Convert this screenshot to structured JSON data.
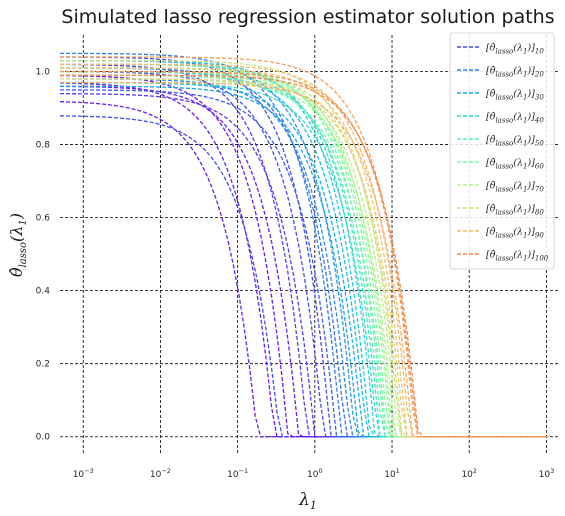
{
  "chart_data": {
    "type": "line",
    "title": "Simulated lasso regression estimator solution paths",
    "xlabel": "λ₁",
    "ylabel": "θ̂_lasso(λ₁)",
    "x_scale": "log",
    "xlim": [
      0.0005,
      1500
    ],
    "ylim": [
      -0.05,
      1.1
    ],
    "grid": true,
    "legend_position": "top-right",
    "x_ticks": [
      {
        "value": 0.001,
        "base": "10",
        "exp": "−3"
      },
      {
        "value": 0.01,
        "base": "10",
        "exp": "−2"
      },
      {
        "value": 0.1,
        "base": "10",
        "exp": "−1"
      },
      {
        "value": 1,
        "base": "10",
        "exp": "0"
      },
      {
        "value": 10,
        "base": "10",
        "exp": "1"
      },
      {
        "value": 100,
        "base": "10",
        "exp": "2"
      },
      {
        "value": 1000,
        "base": "10",
        "exp": "3"
      }
    ],
    "y_ticks": [
      {
        "value": 0.0,
        "label": "0.0"
      },
      {
        "value": 0.2,
        "label": "0.2"
      },
      {
        "value": 0.4,
        "label": "0.4"
      },
      {
        "value": 0.6,
        "label": "0.6"
      },
      {
        "value": 0.8,
        "label": "0.8"
      },
      {
        "value": 1.0,
        "label": "1.0"
      }
    ],
    "series": [
      {
        "legend_index": "10",
        "color": "#3e4ef2",
        "value_at_zero": 0.88,
        "zero_at": 0.35
      },
      {
        "legend_index": "20",
        "color": "#2f7cf5",
        "value_at_zero": 1.05,
        "zero_at": 2.2
      },
      {
        "legend_index": "30",
        "color": "#1aaee8",
        "value_at_zero": 0.97,
        "zero_at": 4.2
      },
      {
        "legend_index": "40",
        "color": "#2fd7d1",
        "value_at_zero": 1.02,
        "zero_at": 6.0
      },
      {
        "legend_index": "50",
        "color": "#55eeb8",
        "value_at_zero": 0.99,
        "zero_at": 7.5
      },
      {
        "legend_index": "60",
        "color": "#80f9a3",
        "value_at_zero": 1.01,
        "zero_at": 9.0
      },
      {
        "legend_index": "70",
        "color": "#aef58a",
        "value_at_zero": 0.98,
        "zero_at": 11.0
      },
      {
        "legend_index": "80",
        "color": "#d8da7b",
        "value_at_zero": 1.0,
        "zero_at": 13.5
      },
      {
        "legend_index": "90",
        "color": "#f7b86a",
        "value_at_zero": 1.02,
        "zero_at": 17.0
      },
      {
        "legend_index": "100",
        "color": "#f28a50",
        "value_at_zero": 0.99,
        "zero_at": 22.0
      }
    ],
    "unlabeled_paths": [
      {
        "color": "#6a1cf2",
        "value_at_zero": 0.92,
        "zero_at": 0.18
      },
      {
        "color": "#6a1cf2",
        "value_at_zero": 0.97,
        "zero_at": 0.3
      },
      {
        "color": "#6a1cf2",
        "value_at_zero": 0.99,
        "zero_at": 0.45
      },
      {
        "color": "#6a1cf2",
        "value_at_zero": 0.96,
        "zero_at": 0.62
      },
      {
        "color": "#5a3af2",
        "value_at_zero": 1.02,
        "zero_at": 0.8
      },
      {
        "color": "#5a3af2",
        "value_at_zero": 0.94,
        "zero_at": 1.0
      },
      {
        "color": "#4b48f3",
        "value_at_zero": 1.0,
        "zero_at": 1.3
      },
      {
        "color": "#4b48f3",
        "value_at_zero": 1.04,
        "zero_at": 1.6
      },
      {
        "color": "#3e5cf4",
        "value_at_zero": 0.95,
        "zero_at": 1.9
      },
      {
        "color": "#3570f5",
        "value_at_zero": 1.01,
        "zero_at": 2.5
      },
      {
        "color": "#2e88f4",
        "value_at_zero": 0.98,
        "zero_at": 2.9
      },
      {
        "color": "#2696ee",
        "value_at_zero": 1.03,
        "zero_at": 3.3
      },
      {
        "color": "#1da4ea",
        "value_at_zero": 0.96,
        "zero_at": 3.7
      },
      {
        "color": "#18bde3",
        "value_at_zero": 1.0,
        "zero_at": 4.7
      },
      {
        "color": "#1ec9dc",
        "value_at_zero": 1.03,
        "zero_at": 5.2
      },
      {
        "color": "#36dcc9",
        "value_at_zero": 0.97,
        "zero_at": 6.5
      },
      {
        "color": "#45e5c0",
        "value_at_zero": 1.0,
        "zero_at": 7.0
      },
      {
        "color": "#66f3af",
        "value_at_zero": 1.02,
        "zero_at": 8.0
      },
      {
        "color": "#74f6a8",
        "value_at_zero": 0.98,
        "zero_at": 8.5
      },
      {
        "color": "#92f89c",
        "value_at_zero": 1.0,
        "zero_at": 9.8
      },
      {
        "color": "#a2f693",
        "value_at_zero": 1.01,
        "zero_at": 10.3
      },
      {
        "color": "#bcec84",
        "value_at_zero": 0.99,
        "zero_at": 12.0
      },
      {
        "color": "#cae27f",
        "value_at_zero": 1.03,
        "zero_at": 12.7
      },
      {
        "color": "#e4cf75",
        "value_at_zero": 0.98,
        "zero_at": 14.5
      },
      {
        "color": "#eec36f",
        "value_at_zero": 1.01,
        "zero_at": 15.5
      },
      {
        "color": "#f5ad63",
        "value_at_zero": 0.97,
        "zero_at": 18.5
      },
      {
        "color": "#f49e5b",
        "value_at_zero": 1.04,
        "zero_at": 20.0
      },
      {
        "color": "#f29455",
        "value_at_zero": 1.0,
        "zero_at": 21.0
      }
    ]
  }
}
